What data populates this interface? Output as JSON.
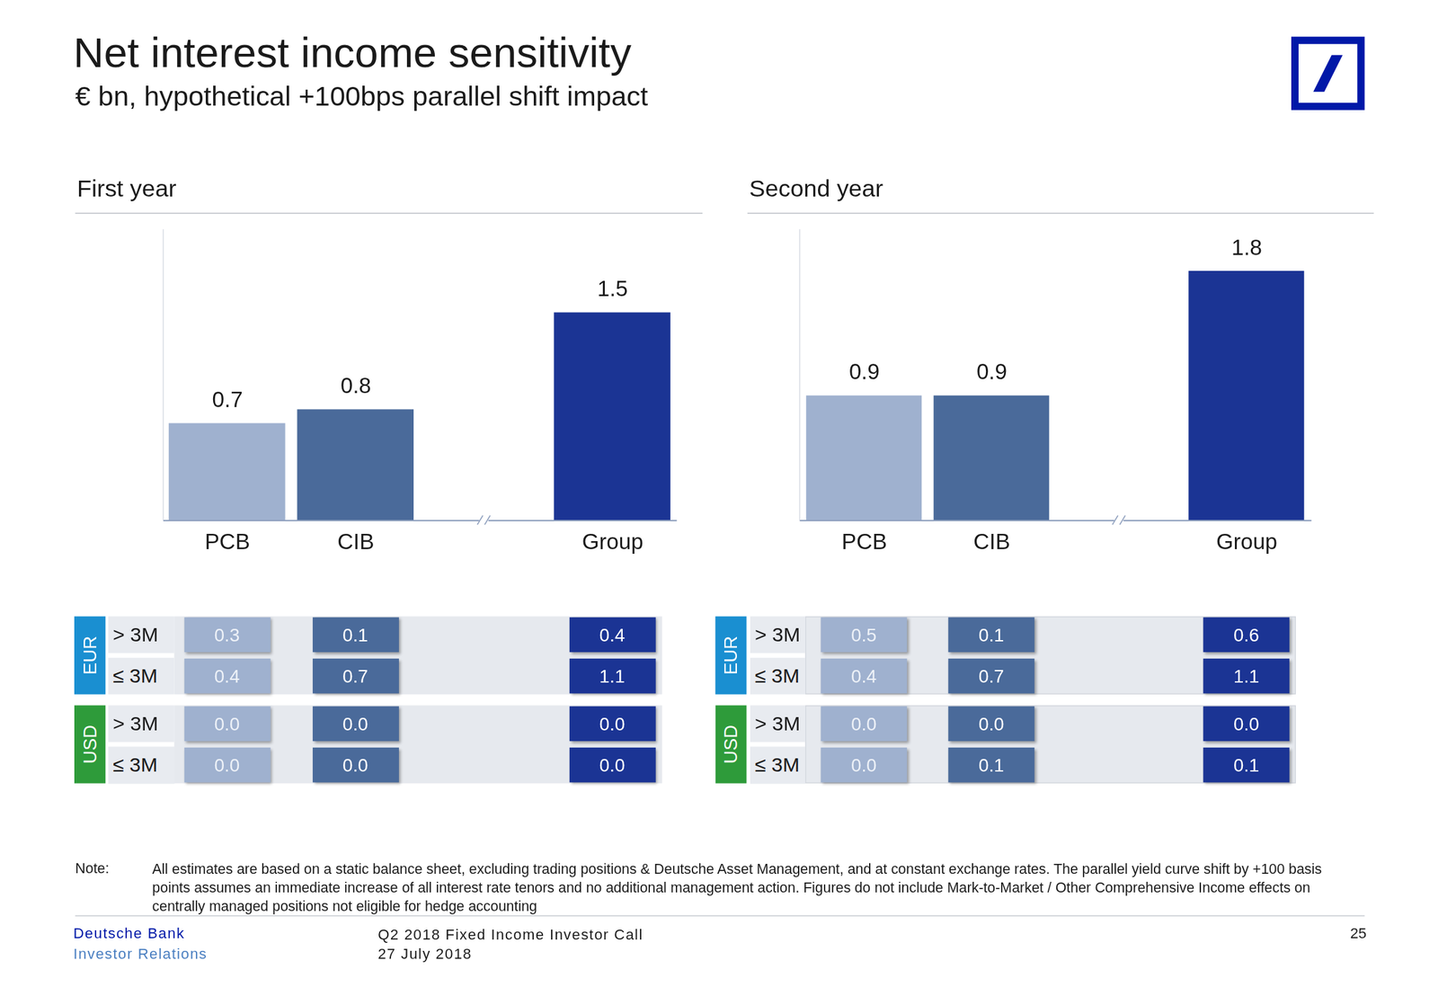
{
  "header": {
    "title": "Net interest income sensitivity",
    "subtitle": "€ bn, hypothetical +100bps parallel shift impact"
  },
  "chart_data": [
    {
      "type": "bar",
      "title": "First year",
      "categories": [
        "PCB",
        "CIB",
        null,
        "Group"
      ],
      "values": [
        0.7,
        0.8,
        null,
        1.5
      ],
      "colors": [
        "#9fb1cf",
        "#4a6a9a",
        null,
        "#1b3494"
      ],
      "ylim": [
        0,
        2.1
      ],
      "yticks": [],
      "tick_labels": "x",
      "data_labels": true,
      "breakdown": [
        {
          "currency": "EUR",
          "color": "#1a8fd1",
          "rows": [
            {
              "label": "> 3M",
              "cells": [
                "0.3",
                "0.1",
                "0.4"
              ]
            },
            {
              "label": "≤ 3M",
              "cells": [
                "0.4",
                "0.7",
                "1.1"
              ]
            }
          ]
        },
        {
          "currency": "USD",
          "color": "#2e9b3a",
          "rows": [
            {
              "label": "> 3M",
              "cells": [
                "0.0",
                "0.0",
                "0.0"
              ]
            },
            {
              "label": "≤ 3M",
              "cells": [
                "0.0",
                "0.0",
                "0.0"
              ]
            }
          ]
        }
      ]
    },
    {
      "type": "bar",
      "title": "Second year",
      "categories": [
        "PCB",
        "CIB",
        null,
        "Group"
      ],
      "values": [
        0.9,
        0.9,
        null,
        1.8
      ],
      "colors": [
        "#9fb1cf",
        "#4a6a9a",
        null,
        "#1b3494"
      ],
      "ylim": [
        0,
        2.1
      ],
      "yticks": [],
      "tick_labels": "x",
      "data_labels": true,
      "breakdown": [
        {
          "currency": "EUR",
          "color": "#1a8fd1",
          "rows": [
            {
              "label": "> 3M",
              "cells": [
                "0.5",
                "0.1",
                "0.6"
              ]
            },
            {
              "label": "≤ 3M",
              "cells": [
                "0.4",
                "0.7",
                "1.1"
              ]
            }
          ]
        },
        {
          "currency": "USD",
          "color": "#2e9b3a",
          "rows": [
            {
              "label": "> 3M",
              "cells": [
                "0.0",
                "0.0",
                "0.0"
              ]
            },
            {
              "label": "≤ 3M",
              "cells": [
                "0.0",
                "0.1",
                "0.1"
              ]
            }
          ]
        }
      ]
    }
  ],
  "note": {
    "label": "Note:",
    "text": "All estimates are based on a static balance sheet, excluding trading positions & Deutsche Asset Management, and at constant exchange rates. The parallel yield curve shift by +100 basis points assumes an immediate increase of all interest rate tenors and no additional management action. Figures do not include Mark-to-Market / Other Comprehensive Income effects on centrally managed positions not eligible for hedge accounting"
  },
  "footer": {
    "company": "Deutsche Bank",
    "department": "Investor Relations",
    "event": "Q2 2018 Fixed Income Investor Call",
    "date": "27 July 2018",
    "page": "25"
  }
}
